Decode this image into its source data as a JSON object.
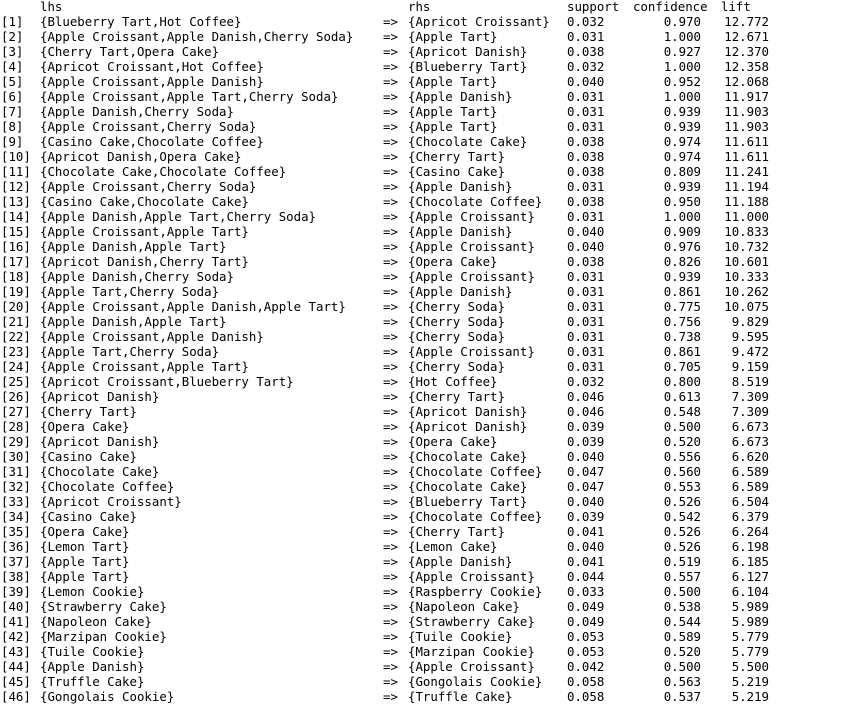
{
  "headers": {
    "lhs": "lhs",
    "rhs": "rhs",
    "support": "support",
    "confidence": "confidence",
    "lift": "lift"
  },
  "rows": [
    {
      "idx": "[1]",
      "lhs": "{Blueberry Tart,Hot Coffee}",
      "arrow": "=>",
      "rhs": "{Apricot Croissant}",
      "support": "0.032",
      "confidence": "0.970",
      "lift": "12.772"
    },
    {
      "idx": "[2]",
      "lhs": "{Apple Croissant,Apple Danish,Cherry Soda}",
      "arrow": "=>",
      "rhs": "{Apple Tart}",
      "support": "0.031",
      "confidence": "1.000",
      "lift": "12.671"
    },
    {
      "idx": "[3]",
      "lhs": "{Cherry Tart,Opera Cake}",
      "arrow": "=>",
      "rhs": "{Apricot Danish}",
      "support": "0.038",
      "confidence": "0.927",
      "lift": "12.370"
    },
    {
      "idx": "[4]",
      "lhs": "{Apricot Croissant,Hot Coffee}",
      "arrow": "=>",
      "rhs": "{Blueberry Tart}",
      "support": "0.032",
      "confidence": "1.000",
      "lift": "12.358"
    },
    {
      "idx": "[5]",
      "lhs": "{Apple Croissant,Apple Danish}",
      "arrow": "=>",
      "rhs": "{Apple Tart}",
      "support": "0.040",
      "confidence": "0.952",
      "lift": "12.068"
    },
    {
      "idx": "[6]",
      "lhs": "{Apple Croissant,Apple Tart,Cherry Soda}",
      "arrow": "=>",
      "rhs": "{Apple Danish}",
      "support": "0.031",
      "confidence": "1.000",
      "lift": "11.917"
    },
    {
      "idx": "[7]",
      "lhs": "{Apple Danish,Cherry Soda}",
      "arrow": "=>",
      "rhs": "{Apple Tart}",
      "support": "0.031",
      "confidence": "0.939",
      "lift": "11.903"
    },
    {
      "idx": "[8]",
      "lhs": "{Apple Croissant,Cherry Soda}",
      "arrow": "=>",
      "rhs": "{Apple Tart}",
      "support": "0.031",
      "confidence": "0.939",
      "lift": "11.903"
    },
    {
      "idx": "[9]",
      "lhs": "{Casino Cake,Chocolate Coffee}",
      "arrow": "=>",
      "rhs": "{Chocolate Cake}",
      "support": "0.038",
      "confidence": "0.974",
      "lift": "11.611"
    },
    {
      "idx": "[10]",
      "lhs": "{Apricot Danish,Opera Cake}",
      "arrow": "=>",
      "rhs": "{Cherry Tart}",
      "support": "0.038",
      "confidence": "0.974",
      "lift": "11.611"
    },
    {
      "idx": "[11]",
      "lhs": "{Chocolate Cake,Chocolate Coffee}",
      "arrow": "=>",
      "rhs": "{Casino Cake}",
      "support": "0.038",
      "confidence": "0.809",
      "lift": "11.241"
    },
    {
      "idx": "[12]",
      "lhs": "{Apple Croissant,Cherry Soda}",
      "arrow": "=>",
      "rhs": "{Apple Danish}",
      "support": "0.031",
      "confidence": "0.939",
      "lift": "11.194"
    },
    {
      "idx": "[13]",
      "lhs": "{Casino Cake,Chocolate Cake}",
      "arrow": "=>",
      "rhs": "{Chocolate Coffee}",
      "support": "0.038",
      "confidence": "0.950",
      "lift": "11.188"
    },
    {
      "idx": "[14]",
      "lhs": "{Apple Danish,Apple Tart,Cherry Soda}",
      "arrow": "=>",
      "rhs": "{Apple Croissant}",
      "support": "0.031",
      "confidence": "1.000",
      "lift": "11.000"
    },
    {
      "idx": "[15]",
      "lhs": "{Apple Croissant,Apple Tart}",
      "arrow": "=>",
      "rhs": "{Apple Danish}",
      "support": "0.040",
      "confidence": "0.909",
      "lift": "10.833"
    },
    {
      "idx": "[16]",
      "lhs": "{Apple Danish,Apple Tart}",
      "arrow": "=>",
      "rhs": "{Apple Croissant}",
      "support": "0.040",
      "confidence": "0.976",
      "lift": "10.732"
    },
    {
      "idx": "[17]",
      "lhs": "{Apricot Danish,Cherry Tart}",
      "arrow": "=>",
      "rhs": "{Opera Cake}",
      "support": "0.038",
      "confidence": "0.826",
      "lift": "10.601"
    },
    {
      "idx": "[18]",
      "lhs": "{Apple Danish,Cherry Soda}",
      "arrow": "=>",
      "rhs": "{Apple Croissant}",
      "support": "0.031",
      "confidence": "0.939",
      "lift": "10.333"
    },
    {
      "idx": "[19]",
      "lhs": "{Apple Tart,Cherry Soda}",
      "arrow": "=>",
      "rhs": "{Apple Danish}",
      "support": "0.031",
      "confidence": "0.861",
      "lift": "10.262"
    },
    {
      "idx": "[20]",
      "lhs": "{Apple Croissant,Apple Danish,Apple Tart}",
      "arrow": "=>",
      "rhs": "{Cherry Soda}",
      "support": "0.031",
      "confidence": "0.775",
      "lift": "10.075"
    },
    {
      "idx": "[21]",
      "lhs": "{Apple Danish,Apple Tart}",
      "arrow": "=>",
      "rhs": "{Cherry Soda}",
      "support": "0.031",
      "confidence": "0.756",
      "lift": "9.829"
    },
    {
      "idx": "[22]",
      "lhs": "{Apple Croissant,Apple Danish}",
      "arrow": "=>",
      "rhs": "{Cherry Soda}",
      "support": "0.031",
      "confidence": "0.738",
      "lift": "9.595"
    },
    {
      "idx": "[23]",
      "lhs": "{Apple Tart,Cherry Soda}",
      "arrow": "=>",
      "rhs": "{Apple Croissant}",
      "support": "0.031",
      "confidence": "0.861",
      "lift": "9.472"
    },
    {
      "idx": "[24]",
      "lhs": "{Apple Croissant,Apple Tart}",
      "arrow": "=>",
      "rhs": "{Cherry Soda}",
      "support": "0.031",
      "confidence": "0.705",
      "lift": "9.159"
    },
    {
      "idx": "[25]",
      "lhs": "{Apricot Croissant,Blueberry Tart}",
      "arrow": "=>",
      "rhs": "{Hot Coffee}",
      "support": "0.032",
      "confidence": "0.800",
      "lift": "8.519"
    },
    {
      "idx": "[26]",
      "lhs": "{Apricot Danish}",
      "arrow": "=>",
      "rhs": "{Cherry Tart}",
      "support": "0.046",
      "confidence": "0.613",
      "lift": "7.309"
    },
    {
      "idx": "[27]",
      "lhs": "{Cherry Tart}",
      "arrow": "=>",
      "rhs": "{Apricot Danish}",
      "support": "0.046",
      "confidence": "0.548",
      "lift": "7.309"
    },
    {
      "idx": "[28]",
      "lhs": "{Opera Cake}",
      "arrow": "=>",
      "rhs": "{Apricot Danish}",
      "support": "0.039",
      "confidence": "0.500",
      "lift": "6.673"
    },
    {
      "idx": "[29]",
      "lhs": "{Apricot Danish}",
      "arrow": "=>",
      "rhs": "{Opera Cake}",
      "support": "0.039",
      "confidence": "0.520",
      "lift": "6.673"
    },
    {
      "idx": "[30]",
      "lhs": "{Casino Cake}",
      "arrow": "=>",
      "rhs": "{Chocolate Cake}",
      "support": "0.040",
      "confidence": "0.556",
      "lift": "6.620"
    },
    {
      "idx": "[31]",
      "lhs": "{Chocolate Cake}",
      "arrow": "=>",
      "rhs": "{Chocolate Coffee}",
      "support": "0.047",
      "confidence": "0.560",
      "lift": "6.589"
    },
    {
      "idx": "[32]",
      "lhs": "{Chocolate Coffee}",
      "arrow": "=>",
      "rhs": "{Chocolate Cake}",
      "support": "0.047",
      "confidence": "0.553",
      "lift": "6.589"
    },
    {
      "idx": "[33]",
      "lhs": "{Apricot Croissant}",
      "arrow": "=>",
      "rhs": "{Blueberry Tart}",
      "support": "0.040",
      "confidence": "0.526",
      "lift": "6.504"
    },
    {
      "idx": "[34]",
      "lhs": "{Casino Cake}",
      "arrow": "=>",
      "rhs": "{Chocolate Coffee}",
      "support": "0.039",
      "confidence": "0.542",
      "lift": "6.379"
    },
    {
      "idx": "[35]",
      "lhs": "{Opera Cake}",
      "arrow": "=>",
      "rhs": "{Cherry Tart}",
      "support": "0.041",
      "confidence": "0.526",
      "lift": "6.264"
    },
    {
      "idx": "[36]",
      "lhs": "{Lemon Tart}",
      "arrow": "=>",
      "rhs": "{Lemon Cake}",
      "support": "0.040",
      "confidence": "0.526",
      "lift": "6.198"
    },
    {
      "idx": "[37]",
      "lhs": "{Apple Tart}",
      "arrow": "=>",
      "rhs": "{Apple Danish}",
      "support": "0.041",
      "confidence": "0.519",
      "lift": "6.185"
    },
    {
      "idx": "[38]",
      "lhs": "{Apple Tart}",
      "arrow": "=>",
      "rhs": "{Apple Croissant}",
      "support": "0.044",
      "confidence": "0.557",
      "lift": "6.127"
    },
    {
      "idx": "[39]",
      "lhs": "{Lemon Cookie}",
      "arrow": "=>",
      "rhs": "{Raspberry Cookie}",
      "support": "0.033",
      "confidence": "0.500",
      "lift": "6.104"
    },
    {
      "idx": "[40]",
      "lhs": "{Strawberry Cake}",
      "arrow": "=>",
      "rhs": "{Napoleon Cake}",
      "support": "0.049",
      "confidence": "0.538",
      "lift": "5.989"
    },
    {
      "idx": "[41]",
      "lhs": "{Napoleon Cake}",
      "arrow": "=>",
      "rhs": "{Strawberry Cake}",
      "support": "0.049",
      "confidence": "0.544",
      "lift": "5.989"
    },
    {
      "idx": "[42]",
      "lhs": "{Marzipan Cookie}",
      "arrow": "=>",
      "rhs": "{Tuile Cookie}",
      "support": "0.053",
      "confidence": "0.589",
      "lift": "5.779"
    },
    {
      "idx": "[43]",
      "lhs": "{Tuile Cookie}",
      "arrow": "=>",
      "rhs": "{Marzipan Cookie}",
      "support": "0.053",
      "confidence": "0.520",
      "lift": "5.779"
    },
    {
      "idx": "[44]",
      "lhs": "{Apple Danish}",
      "arrow": "=>",
      "rhs": "{Apple Croissant}",
      "support": "0.042",
      "confidence": "0.500",
      "lift": "5.500"
    },
    {
      "idx": "[45]",
      "lhs": "{Truffle Cake}",
      "arrow": "=>",
      "rhs": "{Gongolais Cookie}",
      "support": "0.058",
      "confidence": "0.563",
      "lift": "5.219"
    },
    {
      "idx": "[46]",
      "lhs": "{Gongolais Cookie}",
      "arrow": "=>",
      "rhs": "{Truffle Cake}",
      "support": "0.058",
      "confidence": "0.537",
      "lift": "5.219"
    }
  ]
}
